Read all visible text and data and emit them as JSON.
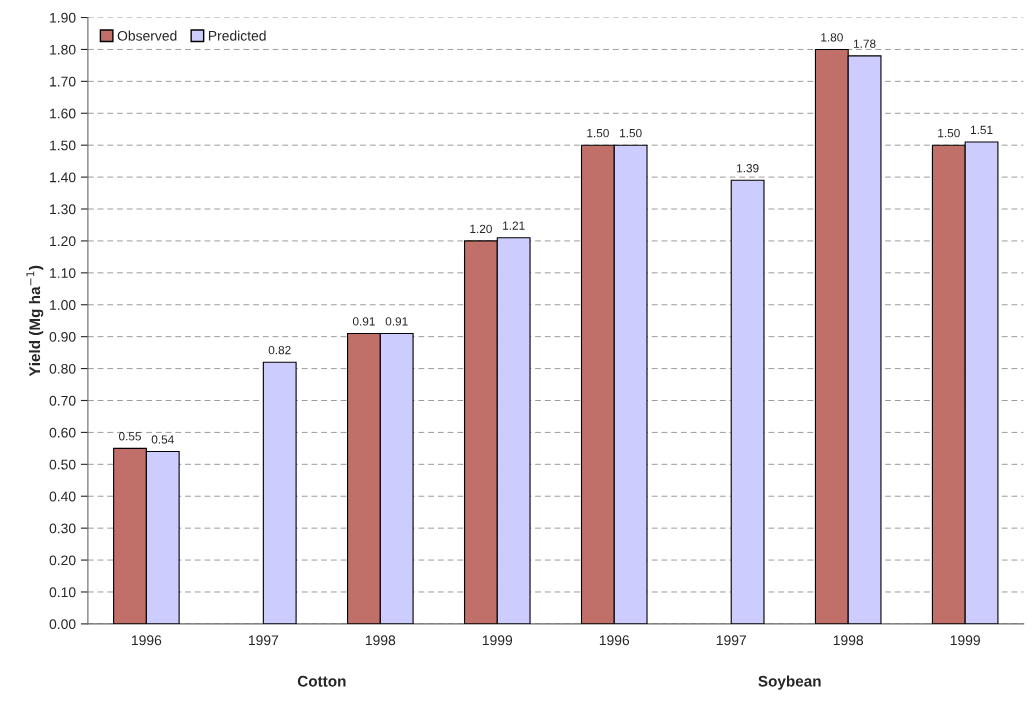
{
  "chart_data": {
    "type": "bar",
    "categories": [
      "1996",
      "1997",
      "1998",
      "1999",
      "1996",
      "1997",
      "1998",
      "1999"
    ],
    "series": [
      {
        "name": "Observed",
        "color": "#c07068",
        "values": [
          0.55,
          null,
          0.91,
          1.2,
          1.5,
          null,
          1.8,
          1.5
        ],
        "value_labels": [
          "0.55",
          null,
          "0.91",
          "1.20",
          "1.50",
          null,
          "1.80",
          "1.50"
        ]
      },
      {
        "name": "Predicted",
        "color": "#ccccff",
        "values": [
          0.54,
          0.82,
          0.91,
          1.21,
          1.5,
          1.39,
          1.78,
          1.51
        ],
        "value_labels": [
          "0.54",
          "0.82",
          "0.91",
          "1.21",
          "1.50",
          "1.39",
          "1.78",
          "1.51"
        ]
      }
    ],
    "ylabel": "Yield (Mg ha$^{−1}$)",
    "annotations": [
      "Cotton",
      "Soybean"
    ],
    "ylim": [
      0,
      1.9
    ],
    "yticks": [
      {
        "value": 0,
        "label": "0.00"
      },
      {
        "value": 0.1,
        "label": "0.10"
      },
      {
        "value": 0.2,
        "label": "0.20"
      },
      {
        "value": 0.3,
        "label": "0.30"
      },
      {
        "value": 0.4,
        "label": "0.40"
      },
      {
        "value": 0.5,
        "label": "0.50"
      },
      {
        "value": 0.6,
        "label": "0.60"
      },
      {
        "value": 0.7,
        "label": "0.70"
      },
      {
        "value": 0.8,
        "label": "0.80"
      },
      {
        "value": 0.9,
        "label": "0.90"
      },
      {
        "value": 1.0,
        "label": "1.00"
      },
      {
        "value": 1.1,
        "label": "1.10"
      },
      {
        "value": 1.2,
        "label": "1.20"
      },
      {
        "value": 1.3,
        "label": "1.30"
      },
      {
        "value": 1.4,
        "label": "1.40"
      },
      {
        "value": 1.5,
        "label": "1.50"
      },
      {
        "value": 1.6,
        "label": "1.60"
      },
      {
        "value": 1.7,
        "label": "1.70"
      },
      {
        "value": 1.8,
        "label": "1.80"
      },
      {
        "value": 1.9,
        "label": "1.90"
      }
    ],
    "grid": "y",
    "legend": "top left"
  }
}
